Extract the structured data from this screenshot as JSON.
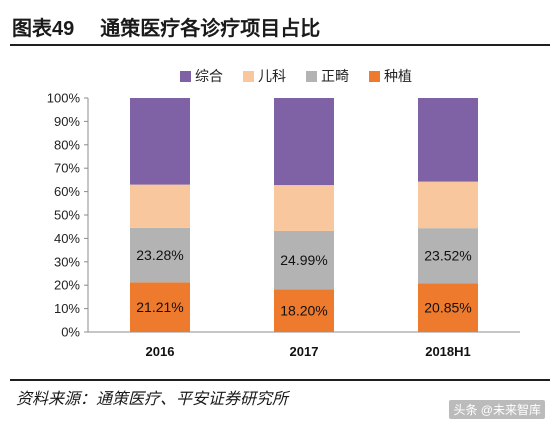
{
  "header": {
    "figure_no": "图表49",
    "title": "通策医疗各诊疗项目占比"
  },
  "source": "资料来源：通策医疗、平安证券研究所",
  "watermark": "头条 @未来智库",
  "chart_data": {
    "type": "bar",
    "stacked": true,
    "categories": [
      "2016",
      "2017",
      "2018H1"
    ],
    "ylim": [
      0,
      100
    ],
    "y_ticks": [
      "0%",
      "10%",
      "20%",
      "30%",
      "40%",
      "50%",
      "60%",
      "70%",
      "80%",
      "90%",
      "100%"
    ],
    "legend_position": "top",
    "grid": false,
    "series": [
      {
        "name": "种植",
        "color": "#ee7a2e",
        "values": [
          21.21,
          18.2,
          20.85
        ],
        "labels": [
          "21.21%",
          "18.20%",
          "20.85%"
        ]
      },
      {
        "name": "正畸",
        "color": "#b3b3b3",
        "values": [
          23.28,
          24.99,
          23.52
        ],
        "labels": [
          "23.28%",
          "24.99%",
          "23.52%"
        ]
      },
      {
        "name": "儿科",
        "color": "#f8c79e",
        "values": [
          18.5,
          19.6,
          19.9
        ],
        "labels": [
          "",
          "",
          ""
        ]
      },
      {
        "name": "综合",
        "color": "#7f61a6",
        "values": [
          37.01,
          37.21,
          35.73
        ],
        "labels": [
          "",
          "",
          ""
        ]
      }
    ],
    "legend_order": [
      "综合",
      "儿科",
      "正畸",
      "种植"
    ]
  }
}
